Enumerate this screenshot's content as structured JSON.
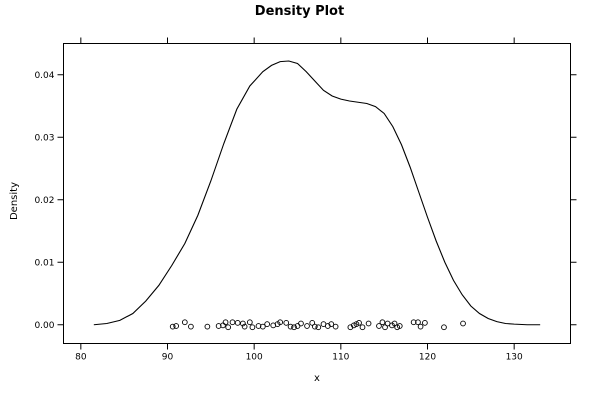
{
  "chart_data": {
    "type": "line",
    "title": "Density Plot",
    "xlabel": "x",
    "ylabel": "Density",
    "xlim": [
      78.0,
      136.5
    ],
    "ylim": [
      -0.003,
      0.045
    ],
    "x_ticks": [
      80,
      90,
      100,
      110,
      120,
      130
    ],
    "y_ticks": [
      0.0,
      0.01,
      0.02,
      0.03,
      0.04
    ],
    "x_tick_labels": [
      "80",
      "90",
      "100",
      "110",
      "120",
      "130"
    ],
    "y_tick_labels": [
      "0.00",
      "0.01",
      "0.02",
      "0.03",
      "0.04"
    ],
    "grid": false,
    "series": [
      {
        "kind": "density",
        "x": [
          81.5,
          83.0,
          84.5,
          86.0,
          87.5,
          89.0,
          90.5,
          92.0,
          93.5,
          95.0,
          96.5,
          98.0,
          99.5,
          101.0,
          102.0,
          103.0,
          104.0,
          105.0,
          106.0,
          107.0,
          108.0,
          109.0,
          110.0,
          111.0,
          112.0,
          113.0,
          114.0,
          115.0,
          116.0,
          117.0,
          118.0,
          119.0,
          120.0,
          121.0,
          122.0,
          123.0,
          124.0,
          125.0,
          126.0,
          127.0,
          128.0,
          129.0,
          130.0,
          131.5,
          133.0
        ],
        "y": [
          0.0,
          0.0002,
          0.0007,
          0.0018,
          0.0038,
          0.0063,
          0.0095,
          0.013,
          0.0175,
          0.023,
          0.029,
          0.0345,
          0.0382,
          0.0405,
          0.0415,
          0.0421,
          0.0422,
          0.0418,
          0.0405,
          0.039,
          0.0375,
          0.0366,
          0.0361,
          0.0358,
          0.0356,
          0.0354,
          0.0349,
          0.0338,
          0.0317,
          0.0288,
          0.0252,
          0.0212,
          0.0172,
          0.0134,
          0.01,
          0.0071,
          0.0048,
          0.003,
          0.0018,
          0.001,
          0.0005,
          0.0002,
          0.0001,
          0.0,
          0.0
        ]
      },
      {
        "kind": "rug",
        "points": [
          [
            90.6,
            -0.0003
          ],
          [
            91.0,
            -0.0002
          ],
          [
            92.0,
            0.0004
          ],
          [
            92.7,
            -0.0003
          ],
          [
            94.6,
            -0.0003
          ],
          [
            95.9,
            -0.0002
          ],
          [
            96.4,
            -0.0001
          ],
          [
            96.7,
            0.0004
          ],
          [
            97.0,
            -0.0004
          ],
          [
            97.5,
            0.0004
          ],
          [
            98.1,
            0.0003
          ],
          [
            98.7,
            0.0002
          ],
          [
            98.9,
            -0.0003
          ],
          [
            99.5,
            0.0004
          ],
          [
            99.8,
            -0.0004
          ],
          [
            100.5,
            -0.0002
          ],
          [
            101.0,
            -0.0003
          ],
          [
            101.5,
            0.0001
          ],
          [
            102.2,
            -0.0001
          ],
          [
            102.7,
            0.0001
          ],
          [
            103.0,
            0.0004
          ],
          [
            103.7,
            0.0003
          ],
          [
            104.2,
            -0.0003
          ],
          [
            104.6,
            -0.0004
          ],
          [
            105.0,
            -0.0002
          ],
          [
            105.4,
            0.0002
          ],
          [
            106.1,
            -0.0002
          ],
          [
            106.7,
            0.0003
          ],
          [
            107.0,
            -0.0003
          ],
          [
            107.4,
            -0.0004
          ],
          [
            108.0,
            0.0001
          ],
          [
            108.5,
            -0.0002
          ],
          [
            108.9,
            0.0001
          ],
          [
            109.4,
            -0.0003
          ],
          [
            111.1,
            -0.0004
          ],
          [
            111.5,
            -0.0001
          ],
          [
            111.8,
            0.0001
          ],
          [
            112.1,
            0.0003
          ],
          [
            112.5,
            -0.0004
          ],
          [
            113.2,
            0.0002
          ],
          [
            114.4,
            -0.0002
          ],
          [
            114.8,
            0.0004
          ],
          [
            115.1,
            -0.0004
          ],
          [
            115.4,
            0.0002
          ],
          [
            115.9,
            -0.0001
          ],
          [
            116.2,
            0.0002
          ],
          [
            116.5,
            -0.0004
          ],
          [
            116.8,
            -0.0002
          ],
          [
            118.4,
            0.0004
          ],
          [
            118.9,
            0.0004
          ],
          [
            119.2,
            -0.0003
          ],
          [
            119.7,
            0.0003
          ],
          [
            121.9,
            -0.0004
          ],
          [
            124.1,
            0.0002
          ]
        ]
      }
    ]
  }
}
